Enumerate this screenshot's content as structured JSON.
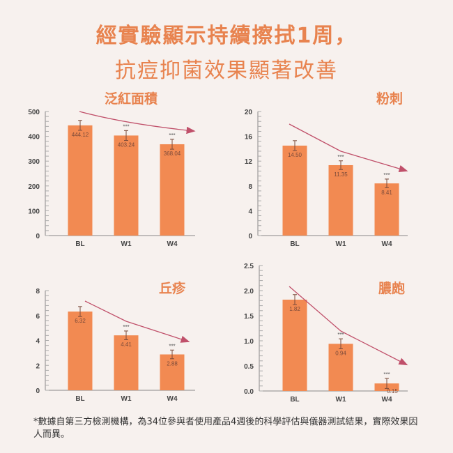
{
  "header": {
    "line1": "經實驗顯示持續擦拭1周，",
    "line2": "抗痘抑菌效果顯著改善"
  },
  "footnote": "*數據自第三方檢測機構，為34位參與者使用產品4週後的科學評估與儀器測試結果，實際效果因人而異。",
  "colors": {
    "title": "#e8834f",
    "bar": "#f28a52",
    "arrow": "#c0506a",
    "axis": "#555555"
  },
  "chart_data": [
    {
      "type": "bar",
      "title": "泛紅面積",
      "categories": [
        "BL",
        "W1",
        "W4"
      ],
      "values": [
        444.12,
        403.24,
        368.04
      ],
      "labels": [
        "444.12",
        "403.24",
        "368.04"
      ],
      "errors": [
        20,
        20,
        20
      ],
      "significance": [
        "",
        "***",
        "***"
      ],
      "ylim": [
        0,
        500
      ],
      "yticks": [
        "0",
        "100",
        "200",
        "300",
        "400",
        "500"
      ],
      "ytick_values": [
        0,
        100,
        200,
        300,
        400,
        500
      ]
    },
    {
      "type": "bar",
      "title": "粉刺",
      "categories": [
        "BL",
        "W1",
        "W4"
      ],
      "values": [
        14.5,
        11.35,
        8.41
      ],
      "labels": [
        "14.50",
        "11.35",
        "8.41"
      ],
      "errors": [
        0.8,
        0.7,
        0.7
      ],
      "significance": [
        "",
        "***",
        "***"
      ],
      "ylim": [
        0,
        20
      ],
      "yticks": [
        "0",
        "4",
        "8",
        "12",
        "16",
        "20"
      ],
      "ytick_values": [
        0,
        4,
        8,
        12,
        16,
        20
      ]
    },
    {
      "type": "bar",
      "title": "丘疹",
      "categories": [
        "BL",
        "W1",
        "W4"
      ],
      "values": [
        6.32,
        4.41,
        2.88
      ],
      "labels": [
        "6.32",
        "4.41",
        "2.88"
      ],
      "errors": [
        0.4,
        0.35,
        0.35
      ],
      "significance": [
        "",
        "***",
        "***"
      ],
      "ylim": [
        0,
        8
      ],
      "yticks": [
        "0",
        "2",
        "4",
        "6",
        "8"
      ],
      "ytick_values": [
        0,
        2,
        4,
        6,
        8
      ]
    },
    {
      "type": "bar",
      "title": "膿皰",
      "categories": [
        "BL",
        "W1",
        "W4"
      ],
      "values": [
        1.82,
        0.94,
        0.15
      ],
      "labels": [
        "1.82",
        "0.94",
        "0.15"
      ],
      "errors": [
        0.1,
        0.1,
        0.1
      ],
      "significance": [
        "",
        "***",
        "***"
      ],
      "ylim": [
        0,
        2.5
      ],
      "yticks": [
        "0.0",
        "0.5",
        "1.0",
        "1.5",
        "2.0",
        "2.5"
      ],
      "ytick_values": [
        0,
        0.5,
        1,
        1.5,
        2,
        2.5
      ]
    }
  ]
}
